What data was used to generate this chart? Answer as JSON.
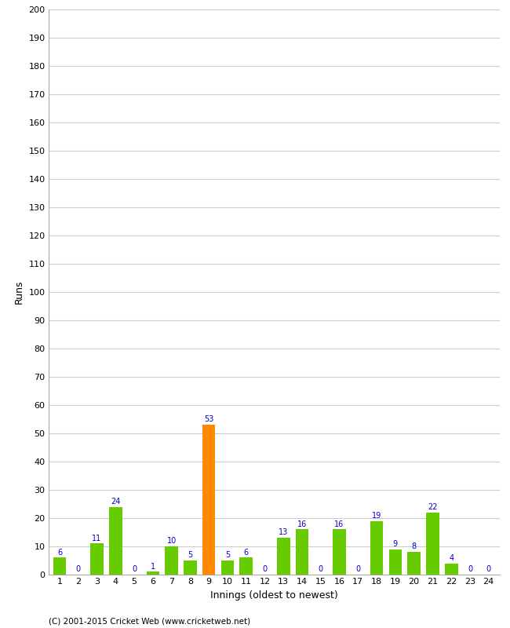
{
  "innings": [
    1,
    2,
    3,
    4,
    5,
    6,
    7,
    8,
    9,
    10,
    11,
    12,
    13,
    14,
    15,
    16,
    17,
    18,
    19,
    20,
    21,
    22,
    23,
    24
  ],
  "runs": [
    6,
    0,
    11,
    24,
    0,
    1,
    10,
    5,
    53,
    5,
    6,
    0,
    13,
    16,
    0,
    16,
    0,
    19,
    9,
    8,
    22,
    4,
    0,
    0
  ],
  "highlight_inning": 9,
  "bar_color_normal": "#66cc00",
  "bar_color_highlight": "#ff8800",
  "label_color": "#0000cc",
  "background_color": "#ffffff",
  "grid_color": "#cccccc",
  "border_color": "#aaaaaa",
  "xlabel": "Innings (oldest to newest)",
  "ylabel": "Runs",
  "ylim": [
    0,
    200
  ],
  "yticks": [
    0,
    10,
    20,
    30,
    40,
    50,
    60,
    70,
    80,
    90,
    100,
    110,
    120,
    130,
    140,
    150,
    160,
    170,
    180,
    190,
    200
  ],
  "footer": "(C) 2001-2015 Cricket Web (www.cricketweb.net)",
  "tick_fontsize": 8,
  "label_fontsize": 9,
  "value_fontsize": 7
}
